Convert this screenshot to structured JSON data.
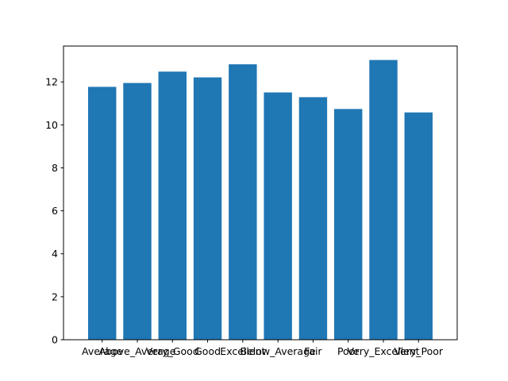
{
  "chart_data": {
    "type": "bar",
    "title": "",
    "xlabel": "",
    "ylabel": "",
    "categories": [
      "Average",
      "Above_Average",
      "Very_Good",
      "Good",
      "Excellent",
      "Below_Average",
      "Fair",
      "Poor",
      "Very_Excellent",
      "Very_Poor"
    ],
    "values": [
      11.77,
      11.95,
      12.48,
      12.21,
      12.82,
      11.51,
      11.29,
      10.74,
      13.02,
      10.58
    ],
    "ylim": [
      0,
      13.67
    ],
    "yticks": [
      0,
      2,
      4,
      6,
      8,
      10,
      12
    ],
    "bar_color": "#1f77b4",
    "grid": false,
    "legend": "none"
  }
}
